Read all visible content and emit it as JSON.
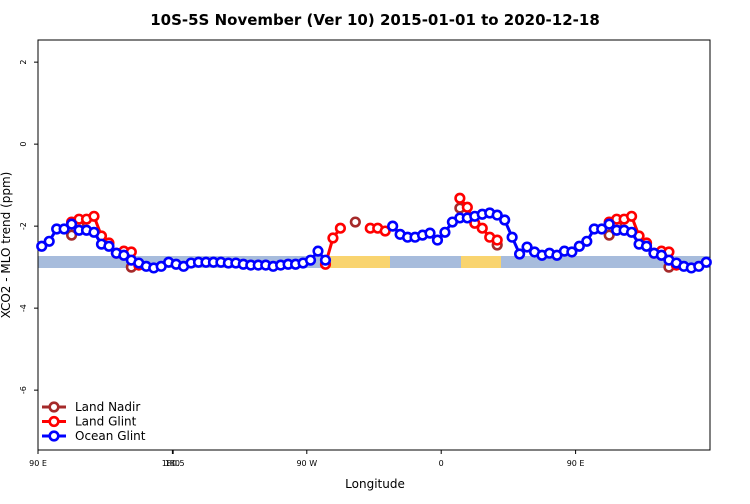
{
  "chart_data": {
    "type": "line",
    "title": "10S-5S November (Ver 10)   2015-01-01 to 2020-12-18",
    "x_label": "Longitude",
    "y_label": "XCO2 - MLO trend (ppm)",
    "x": [
      92.5,
      97.5,
      102.5,
      107.5,
      112.5,
      117.5,
      122.5,
      127.5,
      132.5,
      137.5,
      142.5,
      147.5,
      152.5,
      157.5,
      162.5,
      167.5,
      172.5,
      177.5,
      182.5,
      187.5,
      192.5,
      197.5,
      202.5,
      207.5,
      212.5,
      217.5,
      222.5,
      227.5,
      232.5,
      237.5,
      242.5,
      247.5,
      252.5,
      257.5,
      262.5,
      267.5,
      272.5,
      277.5,
      282.5,
      287.5,
      292.5,
      297.5,
      302.5,
      307.5,
      312.5,
      317.5,
      322.5,
      327.5,
      332.5,
      337.5,
      342.5,
      347.5,
      352.5,
      357.5,
      362.5,
      367.5,
      372.5,
      377.5,
      382.5,
      387.5,
      392.5,
      397.5,
      402.5,
      407.5,
      412.5,
      417.5,
      422.5,
      427.5,
      432.5,
      437.5,
      442.5,
      447.5,
      452.5,
      457.5,
      462.5,
      467.5,
      472.5,
      477.5,
      482.5,
      487.5,
      492.5,
      497.5,
      502.5,
      507.5,
      512.5,
      517.5,
      522.5,
      527.5,
      532.5,
      537.5
    ],
    "series": [
      {
        "name": "Land Nadir",
        "color": "#a52a2a",
        "values": [
          null,
          null,
          null,
          null,
          -2.22,
          -1.95,
          null,
          null,
          null,
          null,
          null,
          -2.66,
          -3.0,
          null,
          null,
          null,
          null,
          null,
          null,
          null,
          null,
          null,
          null,
          null,
          null,
          null,
          null,
          null,
          null,
          null,
          null,
          null,
          null,
          null,
          null,
          null,
          null,
          null,
          null,
          null,
          null,
          null,
          -1.9,
          null,
          null,
          null,
          null,
          null,
          null,
          null,
          null,
          null,
          null,
          null,
          null,
          null,
          -1.56,
          null,
          null,
          null,
          null,
          -2.46,
          null,
          null,
          null,
          null,
          null,
          null,
          null,
          null,
          null,
          null,
          null,
          null,
          null,
          null,
          -2.22,
          -1.95,
          null,
          null,
          null,
          null,
          null,
          -2.66,
          -3.0,
          null,
          null,
          null,
          null,
          null
        ]
      },
      {
        "name": "Land Glint",
        "color": "#ff0000",
        "values": [
          null,
          null,
          null,
          null,
          -1.9,
          -1.83,
          -1.83,
          -1.76,
          -2.24,
          -2.41,
          -2.66,
          -2.61,
          -2.63,
          -2.95,
          null,
          null,
          null,
          null,
          null,
          null,
          null,
          null,
          null,
          null,
          null,
          null,
          null,
          null,
          null,
          null,
          null,
          null,
          null,
          null,
          null,
          null,
          null,
          null,
          -2.93,
          -2.29,
          -2.05,
          null,
          null,
          null,
          -2.05,
          -2.05,
          -2.12,
          null,
          null,
          null,
          null,
          null,
          null,
          null,
          null,
          null,
          -1.32,
          -1.54,
          -1.93,
          -2.05,
          -2.27,
          -2.34,
          null,
          null,
          null,
          null,
          null,
          null,
          null,
          null,
          null,
          null,
          null,
          null,
          null,
          null,
          -1.9,
          -1.83,
          -1.83,
          -1.76,
          -2.24,
          -2.41,
          -2.66,
          -2.61,
          -2.63,
          -2.95,
          null,
          null,
          null,
          null
        ]
      },
      {
        "name": "Ocean Glint",
        "color": "#0000ff",
        "values": [
          -2.49,
          -2.37,
          -2.07,
          -2.07,
          -1.95,
          -2.1,
          -2.1,
          -2.15,
          -2.44,
          -2.49,
          -2.66,
          -2.71,
          -2.83,
          -2.9,
          -2.98,
          -3.02,
          -2.98,
          -2.88,
          -2.93,
          -2.98,
          -2.9,
          -2.88,
          -2.88,
          -2.88,
          -2.88,
          -2.9,
          -2.9,
          -2.93,
          -2.95,
          -2.95,
          -2.95,
          -2.98,
          -2.95,
          -2.93,
          -2.93,
          -2.9,
          -2.83,
          -2.61,
          -2.83,
          null,
          null,
          null,
          null,
          null,
          null,
          null,
          null,
          -2.0,
          -2.2,
          -2.27,
          -2.27,
          -2.22,
          -2.17,
          -2.34,
          -2.15,
          -1.9,
          -1.8,
          -1.8,
          -1.76,
          -1.71,
          -1.68,
          -1.73,
          -1.85,
          -2.27,
          -2.68,
          -2.51,
          -2.63,
          -2.71,
          -2.66,
          -2.71,
          -2.61,
          -2.63,
          -2.49,
          -2.37,
          -2.07,
          -2.07,
          -1.95,
          -2.1,
          -2.1,
          -2.15,
          -2.44,
          -2.49,
          -2.66,
          -2.71,
          -2.83,
          -2.9,
          -2.98,
          -3.02,
          -2.98,
          -2.88
        ]
      }
    ],
    "xlim": [
      90,
      540
    ],
    "xticks": [
      {
        "value": 90,
        "label": "90 E"
      },
      180,
      {
        "value": 270,
        "label": "90 W"
      },
      {
        "value": 360,
        "label": "0"
      },
      {
        "value": 450,
        "label": "90 E"
      },
      180.5
    ],
    "ylim": [
      -7.46,
      2.54
    ],
    "yticks": [
      2,
      0,
      -2,
      -4,
      -6
    ],
    "legend": "bottom-left"
  }
}
